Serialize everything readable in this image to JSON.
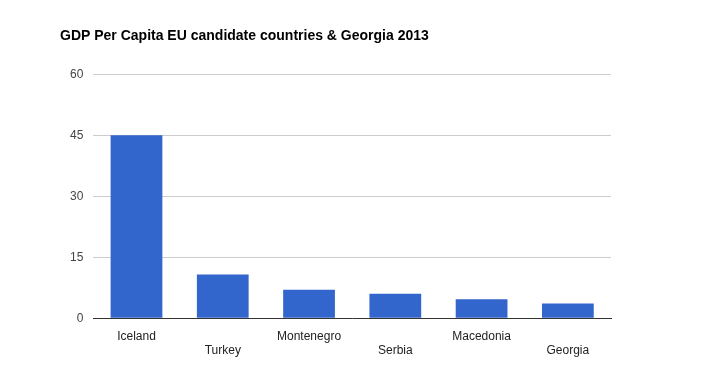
{
  "chart_data": {
    "type": "bar",
    "title": "GDP Per Capita EU candidate countries & Georgia 2013",
    "categories": [
      "Iceland",
      "Turkey",
      "Montenegro",
      "Serbia",
      "Macedonia",
      "Georgia"
    ],
    "values": [
      45.1,
      10.8,
      7.0,
      6.0,
      4.7,
      3.6
    ],
    "color": "#3366cc",
    "ylim": [
      0,
      60
    ],
    "yticks": [
      0,
      15,
      30,
      45,
      60
    ],
    "grid": true
  }
}
